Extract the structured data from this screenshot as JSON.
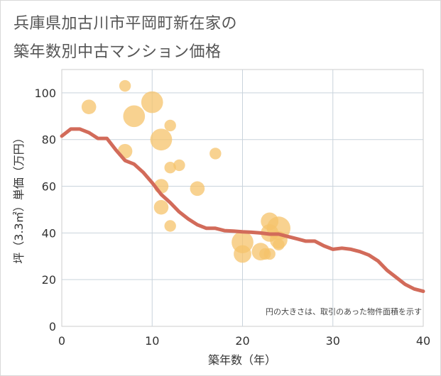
{
  "title_lines": [
    "兵庫県加古川市平岡町新在家の",
    "築年数別中古マンション価格"
  ],
  "chart_data": {
    "type": "scatter",
    "title": "兵庫県加古川市平岡町新在家の築年数別中古マンション価格",
    "xlabel": "築年数（年）",
    "ylabel": "坪（3.3㎡）単価（万円）",
    "xlim": [
      0,
      40
    ],
    "ylim": [
      0,
      110
    ],
    "xticks": [
      0,
      10,
      20,
      30,
      40
    ],
    "yticks": [
      0,
      20,
      40,
      60,
      80,
      100
    ],
    "grid": true,
    "note": "円の大きさは、取引のあった物件面積を示す",
    "bubble_color": "#f5c36b",
    "line_color": "#d26b5a",
    "points": [
      {
        "x": 3,
        "y": 94,
        "size": 1.5
      },
      {
        "x": 7,
        "y": 103,
        "size": 1.0
      },
      {
        "x": 7,
        "y": 75,
        "size": 1.5
      },
      {
        "x": 8,
        "y": 90,
        "size": 2.7
      },
      {
        "x": 10,
        "y": 96,
        "size": 2.7
      },
      {
        "x": 11,
        "y": 80,
        "size": 2.7
      },
      {
        "x": 11,
        "y": 60,
        "size": 1.5
      },
      {
        "x": 11,
        "y": 51,
        "size": 1.5
      },
      {
        "x": 12,
        "y": 86,
        "size": 1.0
      },
      {
        "x": 12,
        "y": 68,
        "size": 1.0
      },
      {
        "x": 12,
        "y": 43,
        "size": 1.0
      },
      {
        "x": 13,
        "y": 69,
        "size": 1.0
      },
      {
        "x": 15,
        "y": 59,
        "size": 1.5
      },
      {
        "x": 17,
        "y": 74,
        "size": 1.0
      },
      {
        "x": 20,
        "y": 36,
        "size": 2.7
      },
      {
        "x": 20,
        "y": 31,
        "size": 2.0
      },
      {
        "x": 22,
        "y": 32,
        "size": 2.0
      },
      {
        "x": 22.5,
        "y": 31,
        "size": 1.0
      },
      {
        "x": 23,
        "y": 45,
        "size": 2.0
      },
      {
        "x": 23,
        "y": 40,
        "size": 2.0
      },
      {
        "x": 23,
        "y": 31,
        "size": 1.0
      },
      {
        "x": 24,
        "y": 42,
        "size": 3.0
      },
      {
        "x": 24,
        "y": 37,
        "size": 2.0
      },
      {
        "x": 24,
        "y": 35,
        "size": 1.0
      }
    ],
    "trend": {
      "x": [
        0,
        1,
        2,
        3,
        4,
        5,
        6,
        7,
        8,
        9,
        10,
        11,
        12,
        13,
        14,
        15,
        16,
        17,
        18,
        19,
        20,
        21,
        22,
        23,
        24,
        25,
        26,
        27,
        28,
        29,
        30,
        31,
        32,
        33,
        34,
        35,
        36,
        37,
        38,
        39,
        40
      ],
      "y": [
        81.5,
        84.5,
        84.5,
        83,
        80.5,
        80.5,
        75.5,
        71,
        69.5,
        66,
        61.5,
        56.5,
        53,
        49,
        46,
        43.5,
        42,
        42,
        41,
        40.8,
        40.5,
        40.3,
        40,
        39.5,
        39.5,
        38.5,
        37.5,
        36.5,
        36.5,
        34.5,
        33,
        33.5,
        33,
        32,
        30.5,
        28,
        24,
        21,
        18,
        16,
        15
      ]
    }
  }
}
